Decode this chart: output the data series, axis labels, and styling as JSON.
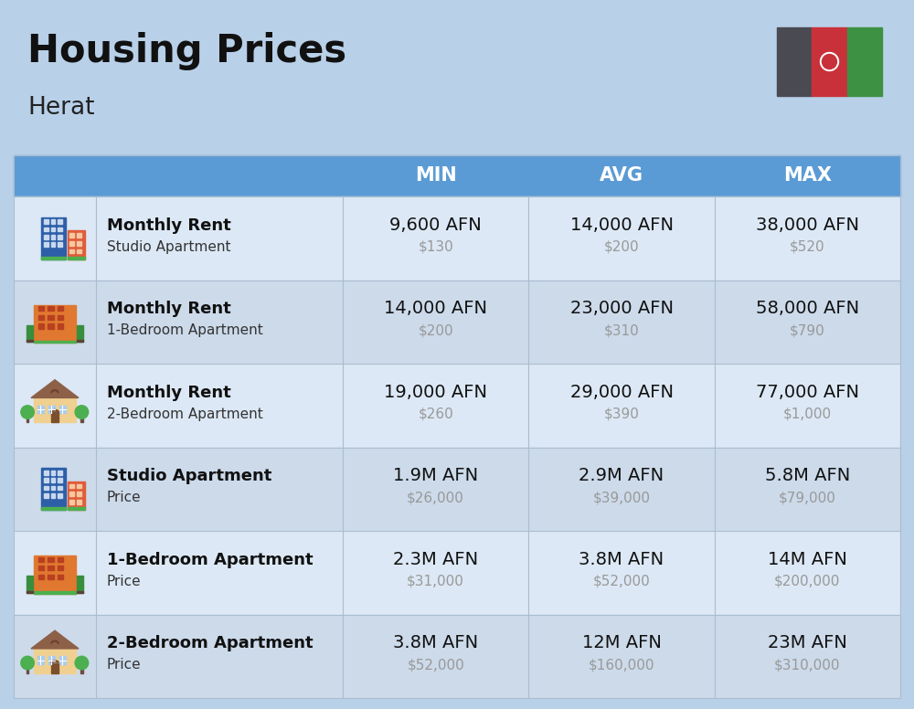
{
  "title": "Housing Prices",
  "subtitle": "Herat",
  "background_color": "#b8d0e8",
  "header_bg_color": "#5b9bd5",
  "header_text_color": "#ffffff",
  "row_colors": [
    "#dce8f5",
    "#ccdaea"
  ],
  "col_headers": [
    "MIN",
    "AVG",
    "MAX"
  ],
  "rows": [
    {
      "bold_label": "Monthly Rent",
      "sub_label": "Studio Apartment",
      "icon_type": "studio_blue",
      "min_afn": "9,600 AFN",
      "min_usd": "$130",
      "avg_afn": "14,000 AFN",
      "avg_usd": "$200",
      "max_afn": "38,000 AFN",
      "max_usd": "$520"
    },
    {
      "bold_label": "Monthly Rent",
      "sub_label": "1-Bedroom Apartment",
      "icon_type": "apt_orange",
      "min_afn": "14,000 AFN",
      "min_usd": "$200",
      "avg_afn": "23,000 AFN",
      "avg_usd": "$310",
      "max_afn": "58,000 AFN",
      "max_usd": "$790"
    },
    {
      "bold_label": "Monthly Rent",
      "sub_label": "2-Bedroom Apartment",
      "icon_type": "apt_beige",
      "min_afn": "19,000 AFN",
      "min_usd": "$260",
      "avg_afn": "29,000 AFN",
      "avg_usd": "$390",
      "max_afn": "77,000 AFN",
      "max_usd": "$1,000"
    },
    {
      "bold_label": "Studio Apartment",
      "sub_label": "Price",
      "icon_type": "studio_blue",
      "min_afn": "1.9M AFN",
      "min_usd": "$26,000",
      "avg_afn": "2.9M AFN",
      "avg_usd": "$39,000",
      "max_afn": "5.8M AFN",
      "max_usd": "$79,000"
    },
    {
      "bold_label": "1-Bedroom Apartment",
      "sub_label": "Price",
      "icon_type": "apt_orange",
      "min_afn": "2.3M AFN",
      "min_usd": "$31,000",
      "avg_afn": "3.8M AFN",
      "avg_usd": "$52,000",
      "max_afn": "14M AFN",
      "max_usd": "$200,000"
    },
    {
      "bold_label": "2-Bedroom Apartment",
      "sub_label": "Price",
      "icon_type": "apt_beige",
      "min_afn": "3.8M AFN",
      "min_usd": "$52,000",
      "avg_afn": "12M AFN",
      "avg_usd": "$160,000",
      "max_afn": "23M AFN",
      "max_usd": "$310,000"
    }
  ],
  "afn_fontsize": 14,
  "usd_fontsize": 11,
  "label_bold_fontsize": 13,
  "label_sub_fontsize": 11,
  "header_fontsize": 15,
  "title_fontsize": 30,
  "subtitle_fontsize": 19,
  "usd_color": "#999999",
  "cell_border_color": "#aabdd0",
  "flag_colors": [
    "#4a4a52",
    "#c8313a",
    "#3d9142"
  ],
  "flag_emblem_color": "#ffffff"
}
